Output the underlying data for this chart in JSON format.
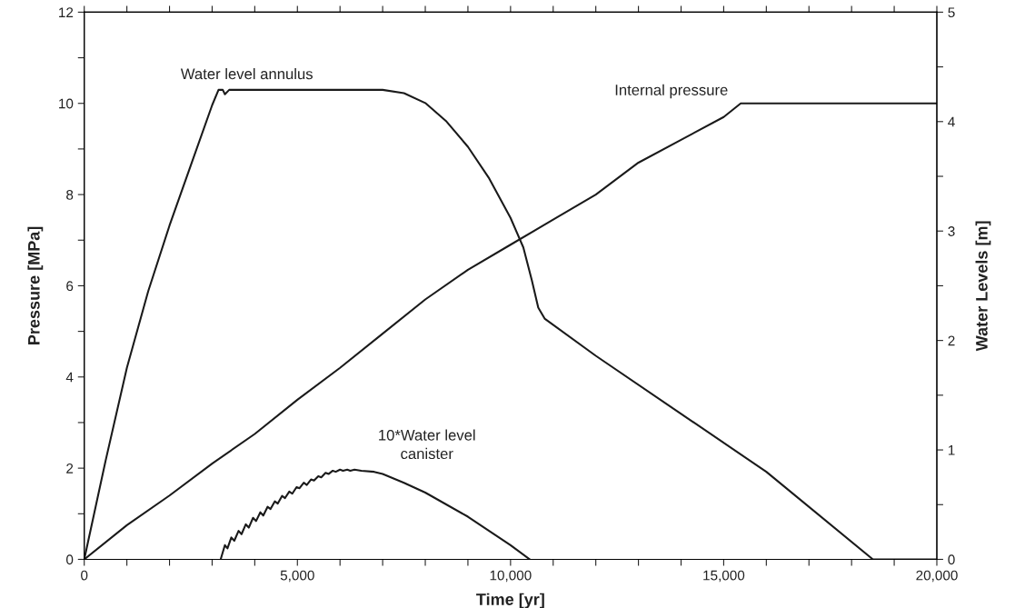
{
  "chart_data": {
    "type": "line",
    "xlabel": "Time [yr]",
    "ylabel": "Pressure [MPa]",
    "y2label": "Water Levels [m]",
    "xlim": [
      0,
      20000
    ],
    "xticks": [
      {
        "value": 0,
        "label": "0"
      },
      {
        "value": 1000,
        "label": null
      },
      {
        "value": 2000,
        "label": null
      },
      {
        "value": 3000,
        "label": null
      },
      {
        "value": 4000,
        "label": null
      },
      {
        "value": 5000,
        "label": "5,000"
      },
      {
        "value": 6000,
        "label": null
      },
      {
        "value": 7000,
        "label": null
      },
      {
        "value": 8000,
        "label": null
      },
      {
        "value": 9000,
        "label": null
      },
      {
        "value": 10000,
        "label": "10,000"
      },
      {
        "value": 11000,
        "label": null
      },
      {
        "value": 12000,
        "label": null
      },
      {
        "value": 13000,
        "label": null
      },
      {
        "value": 14000,
        "label": null
      },
      {
        "value": 15000,
        "label": "15,000"
      },
      {
        "value": 16000,
        "label": null
      },
      {
        "value": 17000,
        "label": null
      },
      {
        "value": 18000,
        "label": null
      },
      {
        "value": 19000,
        "label": null
      },
      {
        "value": 20000,
        "label": "20,000"
      }
    ],
    "ylim": [
      0,
      12
    ],
    "yticks": [
      0,
      {
        "value": 1,
        "label": null
      },
      2,
      {
        "value": 3,
        "label": null
      },
      4,
      {
        "value": 5,
        "label": null
      },
      6,
      {
        "value": 7,
        "label": null
      },
      8,
      {
        "value": 9,
        "label": null
      },
      10,
      {
        "value": 11,
        "label": null
      },
      12
    ],
    "y2lim": [
      0,
      5
    ],
    "y2ticks": [
      0,
      {
        "value": 0.5,
        "label": null
      },
      1,
      {
        "value": 1.5,
        "label": null
      },
      2,
      {
        "value": 2.5,
        "label": null
      },
      3,
      {
        "value": 3.5,
        "label": null
      },
      4,
      {
        "value": 4.5,
        "label": null
      },
      5
    ],
    "grid": false,
    "legend": false,
    "marker": "none",
    "line_style": "solid",
    "series": [
      {
        "name": "Internal pressure",
        "color": "#1a1a1a",
        "axis": "y",
        "x": [
          0,
          1000,
          2000,
          3000,
          4000,
          5000,
          6000,
          7000,
          8000,
          9000,
          10000,
          11000,
          12000,
          13000,
          14000,
          15000,
          15400,
          20000
        ],
        "values": [
          0,
          0.75,
          1.4,
          2.1,
          2.75,
          3.5,
          4.2,
          4.95,
          5.7,
          6.35,
          6.9,
          7.45,
          8.0,
          8.7,
          9.2,
          9.7,
          10.0,
          10.0
        ]
      },
      {
        "name": "Water level annulus",
        "color": "#1a1a1a",
        "axis": "y2",
        "x": [
          0,
          500,
          1000,
          1500,
          2000,
          2500,
          3000,
          3150,
          3250,
          3300,
          3400,
          5000,
          7000,
          7500,
          8000,
          8500,
          9000,
          9500,
          10000,
          10300,
          10500,
          10650,
          10800,
          12000,
          14000,
          16000,
          18500,
          20000
        ],
        "values": [
          0,
          0.9,
          1.75,
          2.45,
          3.05,
          3.6,
          4.15,
          4.29,
          4.29,
          4.25,
          4.29,
          4.29,
          4.29,
          4.26,
          4.17,
          4.0,
          3.77,
          3.48,
          3.12,
          2.85,
          2.55,
          2.3,
          2.2,
          1.86,
          1.33,
          0.8,
          0,
          0
        ]
      },
      {
        "name": "10*Water level\ncanister",
        "color": "#1a1a1a",
        "axis": "y2",
        "x": [
          3200,
          3300,
          3360,
          3450,
          3520,
          3620,
          3690,
          3790,
          3860,
          3960,
          4030,
          4130,
          4200,
          4300,
          4370,
          4470,
          4540,
          4640,
          4710,
          4810,
          4880,
          4980,
          5050,
          5150,
          5220,
          5320,
          5390,
          5490,
          5560,
          5660,
          5730,
          5830,
          5900,
          6000,
          6070,
          6170,
          6240,
          6340,
          6500,
          6800,
          7000,
          7500,
          8000,
          9000,
          10000,
          10450
        ],
        "values": [
          0,
          0.13,
          0.1,
          0.2,
          0.17,
          0.26,
          0.23,
          0.32,
          0.29,
          0.38,
          0.35,
          0.43,
          0.4,
          0.48,
          0.46,
          0.53,
          0.51,
          0.58,
          0.56,
          0.62,
          0.6,
          0.66,
          0.65,
          0.7,
          0.68,
          0.73,
          0.72,
          0.76,
          0.75,
          0.79,
          0.78,
          0.81,
          0.8,
          0.82,
          0.81,
          0.82,
          0.81,
          0.82,
          0.81,
          0.8,
          0.78,
          0.7,
          0.61,
          0.39,
          0.13,
          0
        ]
      }
    ]
  }
}
